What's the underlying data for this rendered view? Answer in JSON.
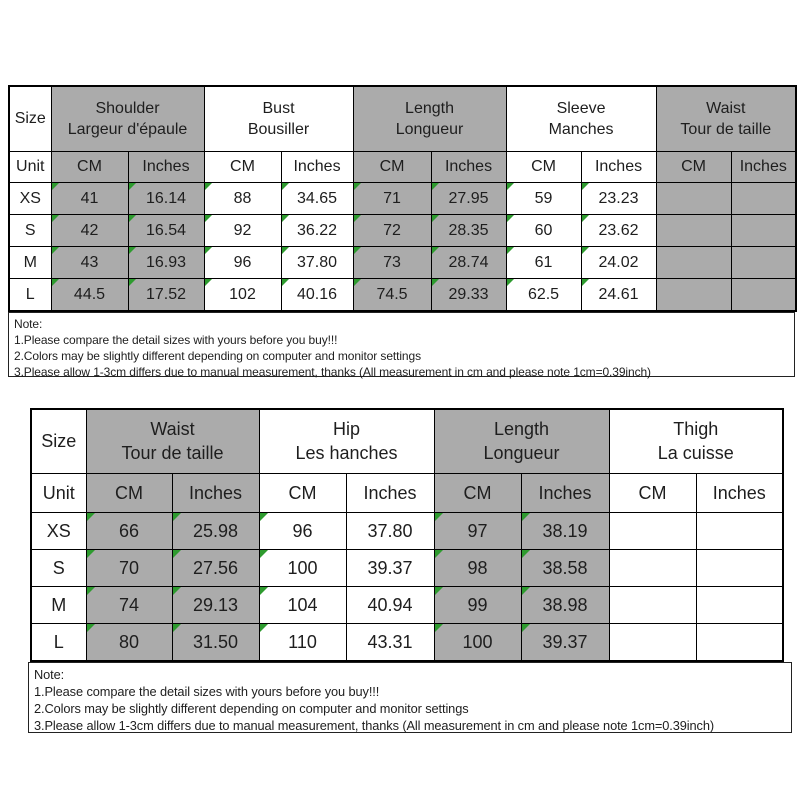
{
  "colors": {
    "background": "#ffffff",
    "shaded_column": "#ABABAB",
    "grid_border": "#000000",
    "green_marker": "#2E9B2F",
    "text": "#1e1e1e"
  },
  "notes": {
    "title": "Note:",
    "lines": [
      "1.Please compare the detail sizes with yours before you buy!!!",
      "2.Colors may be slightly different depending on computer and monitor settings",
      "3.Please allow 1-3cm differs due to manual measurement, thanks (All measurement in cm and please note 1cm=0.39inch)"
    ]
  },
  "tables": [
    {
      "name": "top-garment-size-chart",
      "size_header": "Size",
      "unit_header": "Unit",
      "cm_label": "CM",
      "inches_label": "Inches",
      "columns": [
        {
          "en": "Shoulder",
          "fr": "Largeur d'épaule",
          "shaded": true
        },
        {
          "en": "Bust",
          "fr": "Bousiller",
          "shaded": false
        },
        {
          "en": "Length",
          "fr": "Longueur",
          "shaded": true
        },
        {
          "en": "Sleeve",
          "fr": "Manches",
          "shaded": false
        },
        {
          "en": "Waist",
          "fr": "Tour de taille",
          "shaded": true
        }
      ],
      "green_cols": [
        1,
        1,
        1,
        1,
        1,
        1,
        1,
        1,
        0,
        0
      ],
      "rows": [
        {
          "size": "XS",
          "values": [
            "41",
            "16.14",
            "88",
            "34.65",
            "71",
            "27.95",
            "59",
            "23.23",
            "",
            ""
          ]
        },
        {
          "size": "S",
          "values": [
            "42",
            "16.54",
            "92",
            "36.22",
            "72",
            "28.35",
            "60",
            "23.62",
            "",
            ""
          ]
        },
        {
          "size": "M",
          "values": [
            "43",
            "16.93",
            "96",
            "37.80",
            "73",
            "28.74",
            "61",
            "24.02",
            "",
            ""
          ]
        },
        {
          "size": "L",
          "values": [
            "44.5",
            "17.52",
            "102",
            "40.16",
            "74.5",
            "29.33",
            "62.5",
            "24.61",
            "",
            ""
          ]
        }
      ]
    },
    {
      "name": "bottom-garment-size-chart",
      "size_header": "Size",
      "unit_header": "Unit",
      "cm_label": "CM",
      "inches_label": "Inches",
      "columns": [
        {
          "en": "Waist",
          "fr": "Tour de taille",
          "shaded": true
        },
        {
          "en": "Hip",
          "fr": "Les hanches",
          "shaded": false
        },
        {
          "en": "Length",
          "fr": "Longueur",
          "shaded": true
        },
        {
          "en": "Thigh",
          "fr": "La cuisse",
          "shaded": false
        }
      ],
      "green_cols": [
        1,
        1,
        1,
        0,
        1,
        1,
        0,
        0
      ],
      "rows": [
        {
          "size": "XS",
          "values": [
            "66",
            "25.98",
            "96",
            "37.80",
            "97",
            "38.19",
            "",
            ""
          ]
        },
        {
          "size": "S",
          "values": [
            "70",
            "27.56",
            "100",
            "39.37",
            "98",
            "38.58",
            "",
            ""
          ]
        },
        {
          "size": "M",
          "values": [
            "74",
            "29.13",
            "104",
            "40.94",
            "99",
            "38.98",
            "",
            ""
          ]
        },
        {
          "size": "L",
          "values": [
            "80",
            "31.50",
            "110",
            "43.31",
            "100",
            "39.37",
            "",
            ""
          ]
        }
      ]
    }
  ]
}
